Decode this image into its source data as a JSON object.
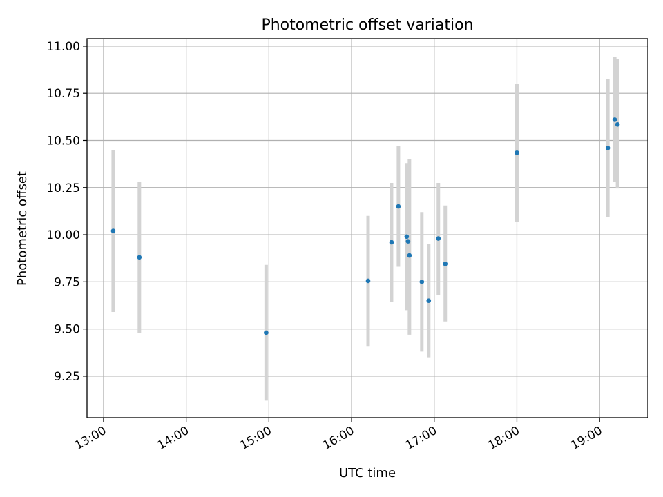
{
  "chart_data": {
    "type": "scatter",
    "title": "Photometric offset variation",
    "xlabel": "UTC time",
    "ylabel": "Photometric offset",
    "x_ticks": [
      "13:00",
      "14:00",
      "15:00",
      "16:00",
      "17:00",
      "18:00",
      "19:00"
    ],
    "y_ticks": [
      "9.25",
      "9.50",
      "9.75",
      "10.00",
      "10.25",
      "10.50",
      "10.75",
      "11.00"
    ],
    "xlim": [
      "12:48",
      "19:35"
    ],
    "ylim": [
      9.03,
      11.04
    ],
    "grid": true,
    "colors": {
      "point": "#1f77b4",
      "errorbar": "#d3d3d3",
      "grid": "#b0b0b0"
    },
    "series": [
      {
        "points": [
          {
            "x": "13:07",
            "y": 10.02,
            "err_low": 9.59,
            "err_high": 10.45
          },
          {
            "x": "13:26",
            "y": 9.88,
            "err_low": 9.48,
            "err_high": 10.28
          },
          {
            "x": "14:58",
            "y": 9.48,
            "err_low": 9.12,
            "err_high": 9.84
          },
          {
            "x": "16:12",
            "y": 9.755,
            "err_low": 9.41,
            "err_high": 10.1
          },
          {
            "x": "16:29",
            "y": 9.96,
            "err_low": 9.645,
            "err_high": 10.275
          },
          {
            "x": "16:34",
            "y": 10.15,
            "err_low": 9.83,
            "err_high": 10.47
          },
          {
            "x": "16:40",
            "y": 9.99,
            "err_low": 9.6,
            "err_high": 10.38
          },
          {
            "x": "16:41",
            "y": 9.965,
            "err_low": 9.61,
            "err_high": 10.32
          },
          {
            "x": "16:42",
            "y": 9.89,
            "err_low": 9.47,
            "err_high": 10.4
          },
          {
            "x": "16:51",
            "y": 9.75,
            "err_low": 9.38,
            "err_high": 10.12
          },
          {
            "x": "16:56",
            "y": 9.65,
            "err_low": 9.35,
            "err_high": 9.95
          },
          {
            "x": "17:03",
            "y": 9.98,
            "err_low": 9.68,
            "err_high": 10.275
          },
          {
            "x": "17:08",
            "y": 9.845,
            "err_low": 9.54,
            "err_high": 10.155
          },
          {
            "x": "18:00",
            "y": 10.435,
            "err_low": 10.07,
            "err_high": 10.8
          },
          {
            "x": "19:06",
            "y": 10.46,
            "err_low": 10.095,
            "err_high": 10.825
          },
          {
            "x": "19:11",
            "y": 10.61,
            "err_low": 10.28,
            "err_high": 10.945
          },
          {
            "x": "19:13",
            "y": 10.585,
            "err_low": 10.245,
            "err_high": 10.93
          }
        ]
      }
    ]
  }
}
